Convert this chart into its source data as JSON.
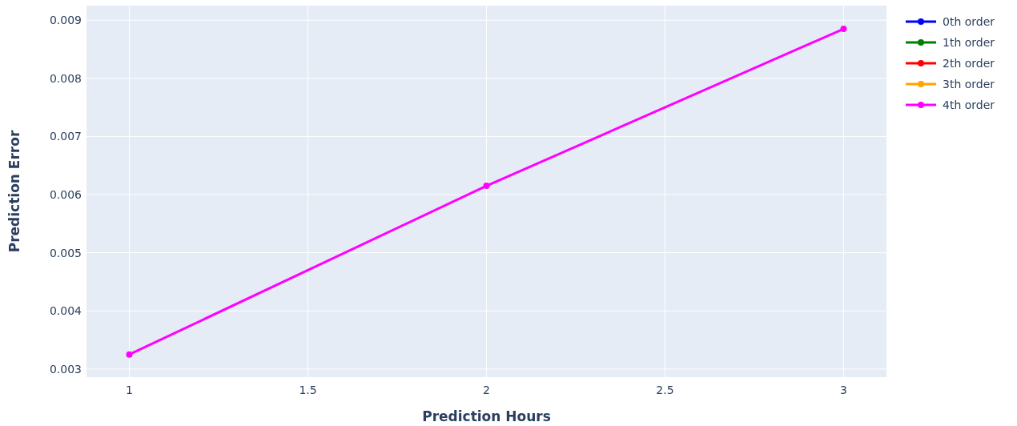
{
  "chart_data": {
    "type": "line",
    "xlabel": "Prediction Hours",
    "ylabel": "Prediction Error",
    "x": [
      1,
      2,
      3
    ],
    "series": [
      {
        "name": "0th order",
        "color": "#0000ff",
        "values": [
          null,
          null,
          null
        ]
      },
      {
        "name": "1th order",
        "color": "#008000",
        "values": [
          null,
          null,
          null
        ]
      },
      {
        "name": "2th order",
        "color": "#ff0000",
        "values": [
          null,
          null,
          null
        ]
      },
      {
        "name": "3th order",
        "color": "#ffa500",
        "values": [
          null,
          null,
          null
        ]
      },
      {
        "name": "4th order",
        "color": "#ff00ff",
        "values": [
          0.00325,
          0.00615,
          0.00885
        ]
      }
    ],
    "xlim": [
      0.88,
      3.12
    ],
    "xticks": [
      1,
      1.5,
      2,
      2.5,
      3
    ],
    "ylim": [
      0.00286,
      0.00925
    ],
    "yticks": [
      0.003,
      0.004,
      0.005,
      0.006,
      0.007,
      0.008,
      0.009
    ],
    "grid": true,
    "legend": "top right",
    "marker": "circle",
    "line_style": "solid"
  }
}
